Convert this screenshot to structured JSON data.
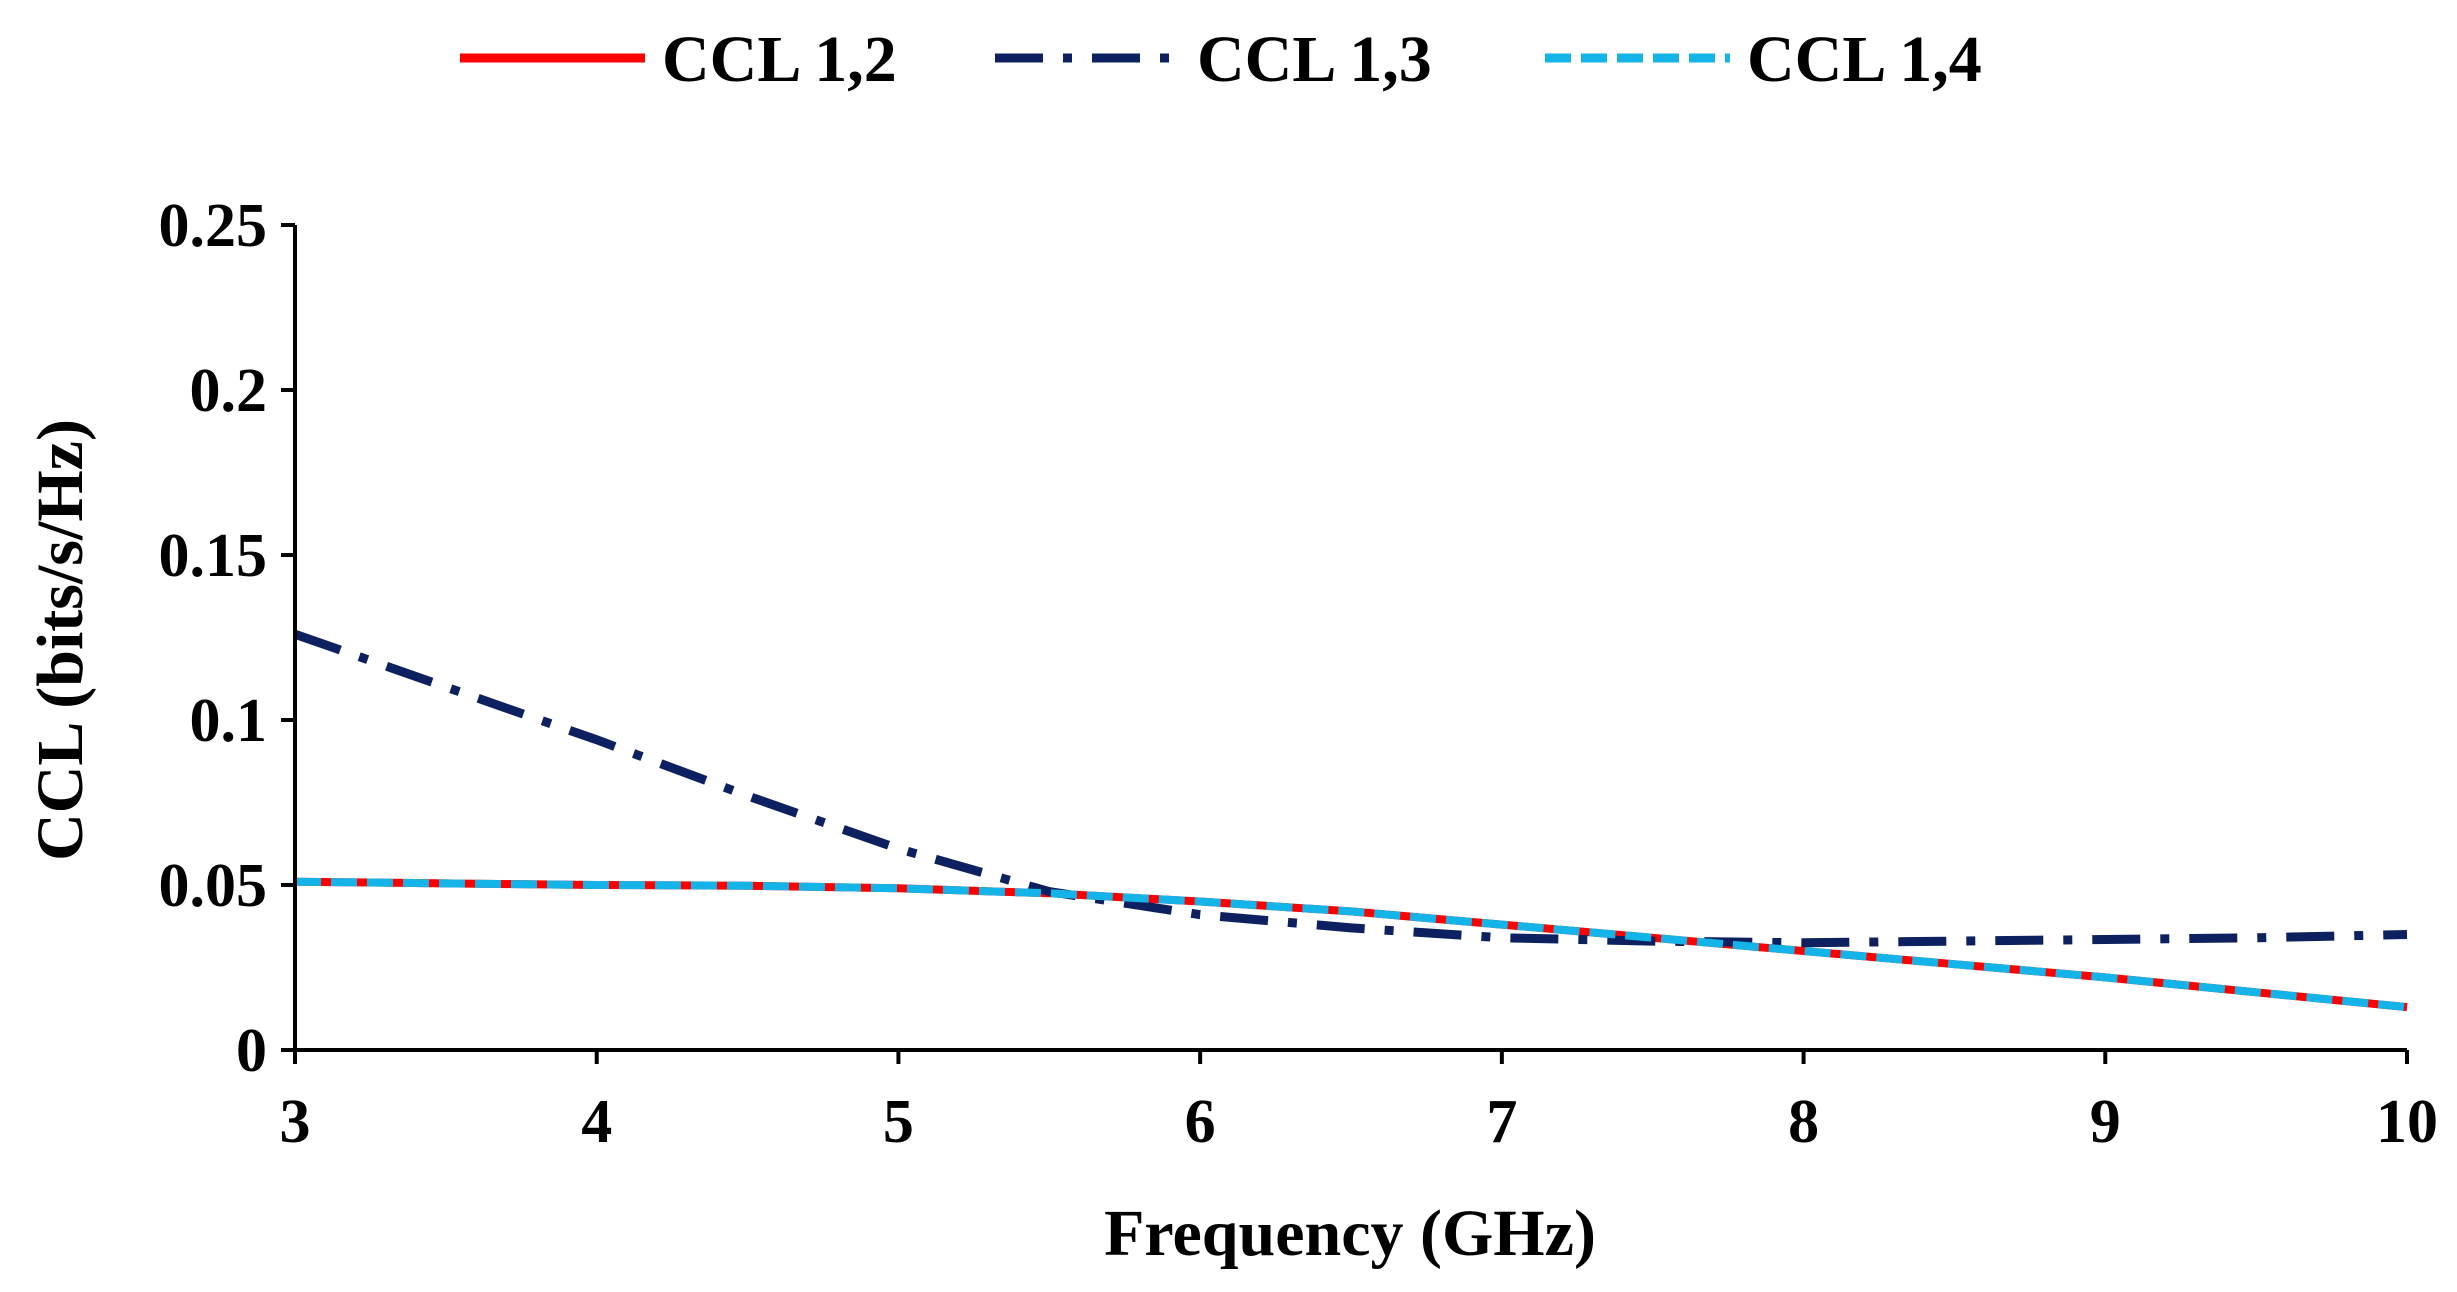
{
  "chart_data": {
    "type": "line",
    "title": "",
    "xlabel": "Frequency (GHz)",
    "ylabel": "CCL (bits/s/Hz)",
    "xlim": [
      3,
      10
    ],
    "ylim": [
      0,
      0.25
    ],
    "x_ticks": [
      "3",
      "4",
      "5",
      "6",
      "7",
      "8",
      "9",
      "10"
    ],
    "y_ticks": [
      "0",
      "0.05",
      "0.1",
      "0.15",
      "0.2",
      "0.25"
    ],
    "x": [
      3,
      3.5,
      4,
      4.5,
      5,
      5.5,
      6,
      6.5,
      7,
      7.5,
      8,
      8.5,
      9,
      9.5,
      10
    ],
    "grid": false,
    "legend_position": "top",
    "series": [
      {
        "name": "CCL 1,2",
        "color": "#ff0000",
        "dash": "solid",
        "values": [
          0.051,
          0.0505,
          0.05,
          0.0498,
          0.049,
          0.0475,
          0.045,
          0.042,
          0.038,
          0.034,
          0.03,
          0.026,
          0.022,
          0.0175,
          0.013
        ]
      },
      {
        "name": "CCL 1,3",
        "color": "#0d2160",
        "dash": "dashdot",
        "values": [
          0.126,
          0.11,
          0.094,
          0.077,
          0.061,
          0.048,
          0.041,
          0.037,
          0.034,
          0.033,
          0.0325,
          0.033,
          0.0335,
          0.034,
          0.035
        ]
      },
      {
        "name": "CCL 1,4",
        "color": "#14b4e8",
        "dash": "dash",
        "values": [
          0.051,
          0.0505,
          0.05,
          0.0498,
          0.049,
          0.0475,
          0.045,
          0.042,
          0.038,
          0.034,
          0.03,
          0.026,
          0.022,
          0.0175,
          0.013
        ]
      }
    ]
  }
}
